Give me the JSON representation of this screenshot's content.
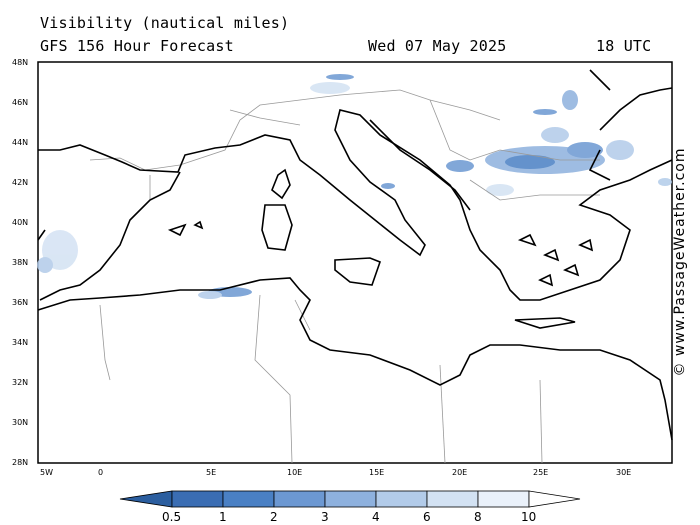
{
  "title_line1": "Visibility (nautical miles)",
  "title_line2": "GFS 156 Hour Forecast",
  "date": "Wed 07 May 2025",
  "time": "18 UTC",
  "copyright": "© www.PassageWeather.com",
  "lat_labels": [
    "48N",
    "46N",
    "44N",
    "42N",
    "40N",
    "38N",
    "36N",
    "34N",
    "32N",
    "30N",
    "28N"
  ],
  "lon_labels": [
    "5W",
    "0",
    "5E",
    "10E",
    "15E",
    "20E",
    "25E",
    "30E"
  ],
  "colorbar": {
    "labels": [
      "0.5",
      "1",
      "2",
      "3",
      "4",
      "6",
      "8",
      "10"
    ],
    "colors": [
      "#3a6db3",
      "#4a80c4",
      "#6c98d2",
      "#8eb1de",
      "#b2cbe9",
      "#d3e2f3",
      "#eaf1fa",
      "#ffffff"
    ]
  }
}
